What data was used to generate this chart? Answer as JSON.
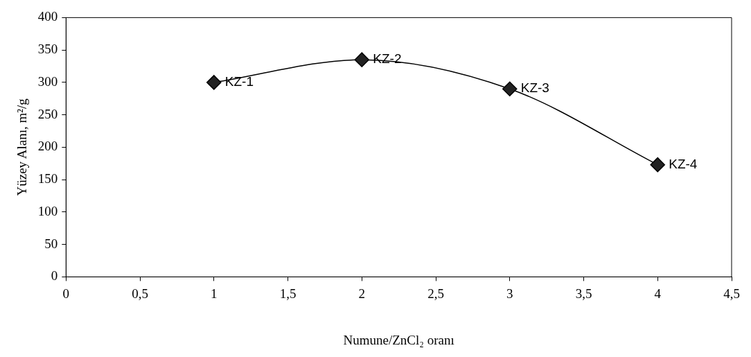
{
  "chart_data": {
    "type": "line",
    "xlabel": "Numune/ZnCl₂ oranı",
    "ylabel": "Yüzey Alanı, m²/g",
    "x": [
      1,
      2,
      3,
      4
    ],
    "series": [
      {
        "color": "#000000",
        "values": [
          300,
          335,
          290,
          173
        ]
      }
    ],
    "xlim": [
      0,
      4.5
    ],
    "xticks": [
      0,
      {
        "value": 0.5,
        "label": "0,5"
      },
      1,
      {
        "value": 1.5,
        "label": "1,5"
      },
      2,
      {
        "value": 2.5,
        "label": "2,5"
      },
      3,
      {
        "value": 3.5,
        "label": "3,5"
      },
      4,
      {
        "value": 4.5,
        "label": "4,5"
      }
    ],
    "ylim": [
      0,
      400
    ],
    "yticks": [
      0,
      50,
      100,
      150,
      200,
      250,
      300,
      350,
      400
    ],
    "grid": false,
    "legend": false,
    "marker": "diamond",
    "line_style": "solid",
    "annotations": [
      {
        "text": "KZ-1",
        "x": 1,
        "y": 300
      },
      {
        "text": "KZ-2",
        "x": 2,
        "y": 335
      },
      {
        "text": "KZ-3",
        "x": 3,
        "y": 290
      },
      {
        "text": "KZ-4",
        "x": 4,
        "y": 173
      }
    ]
  }
}
